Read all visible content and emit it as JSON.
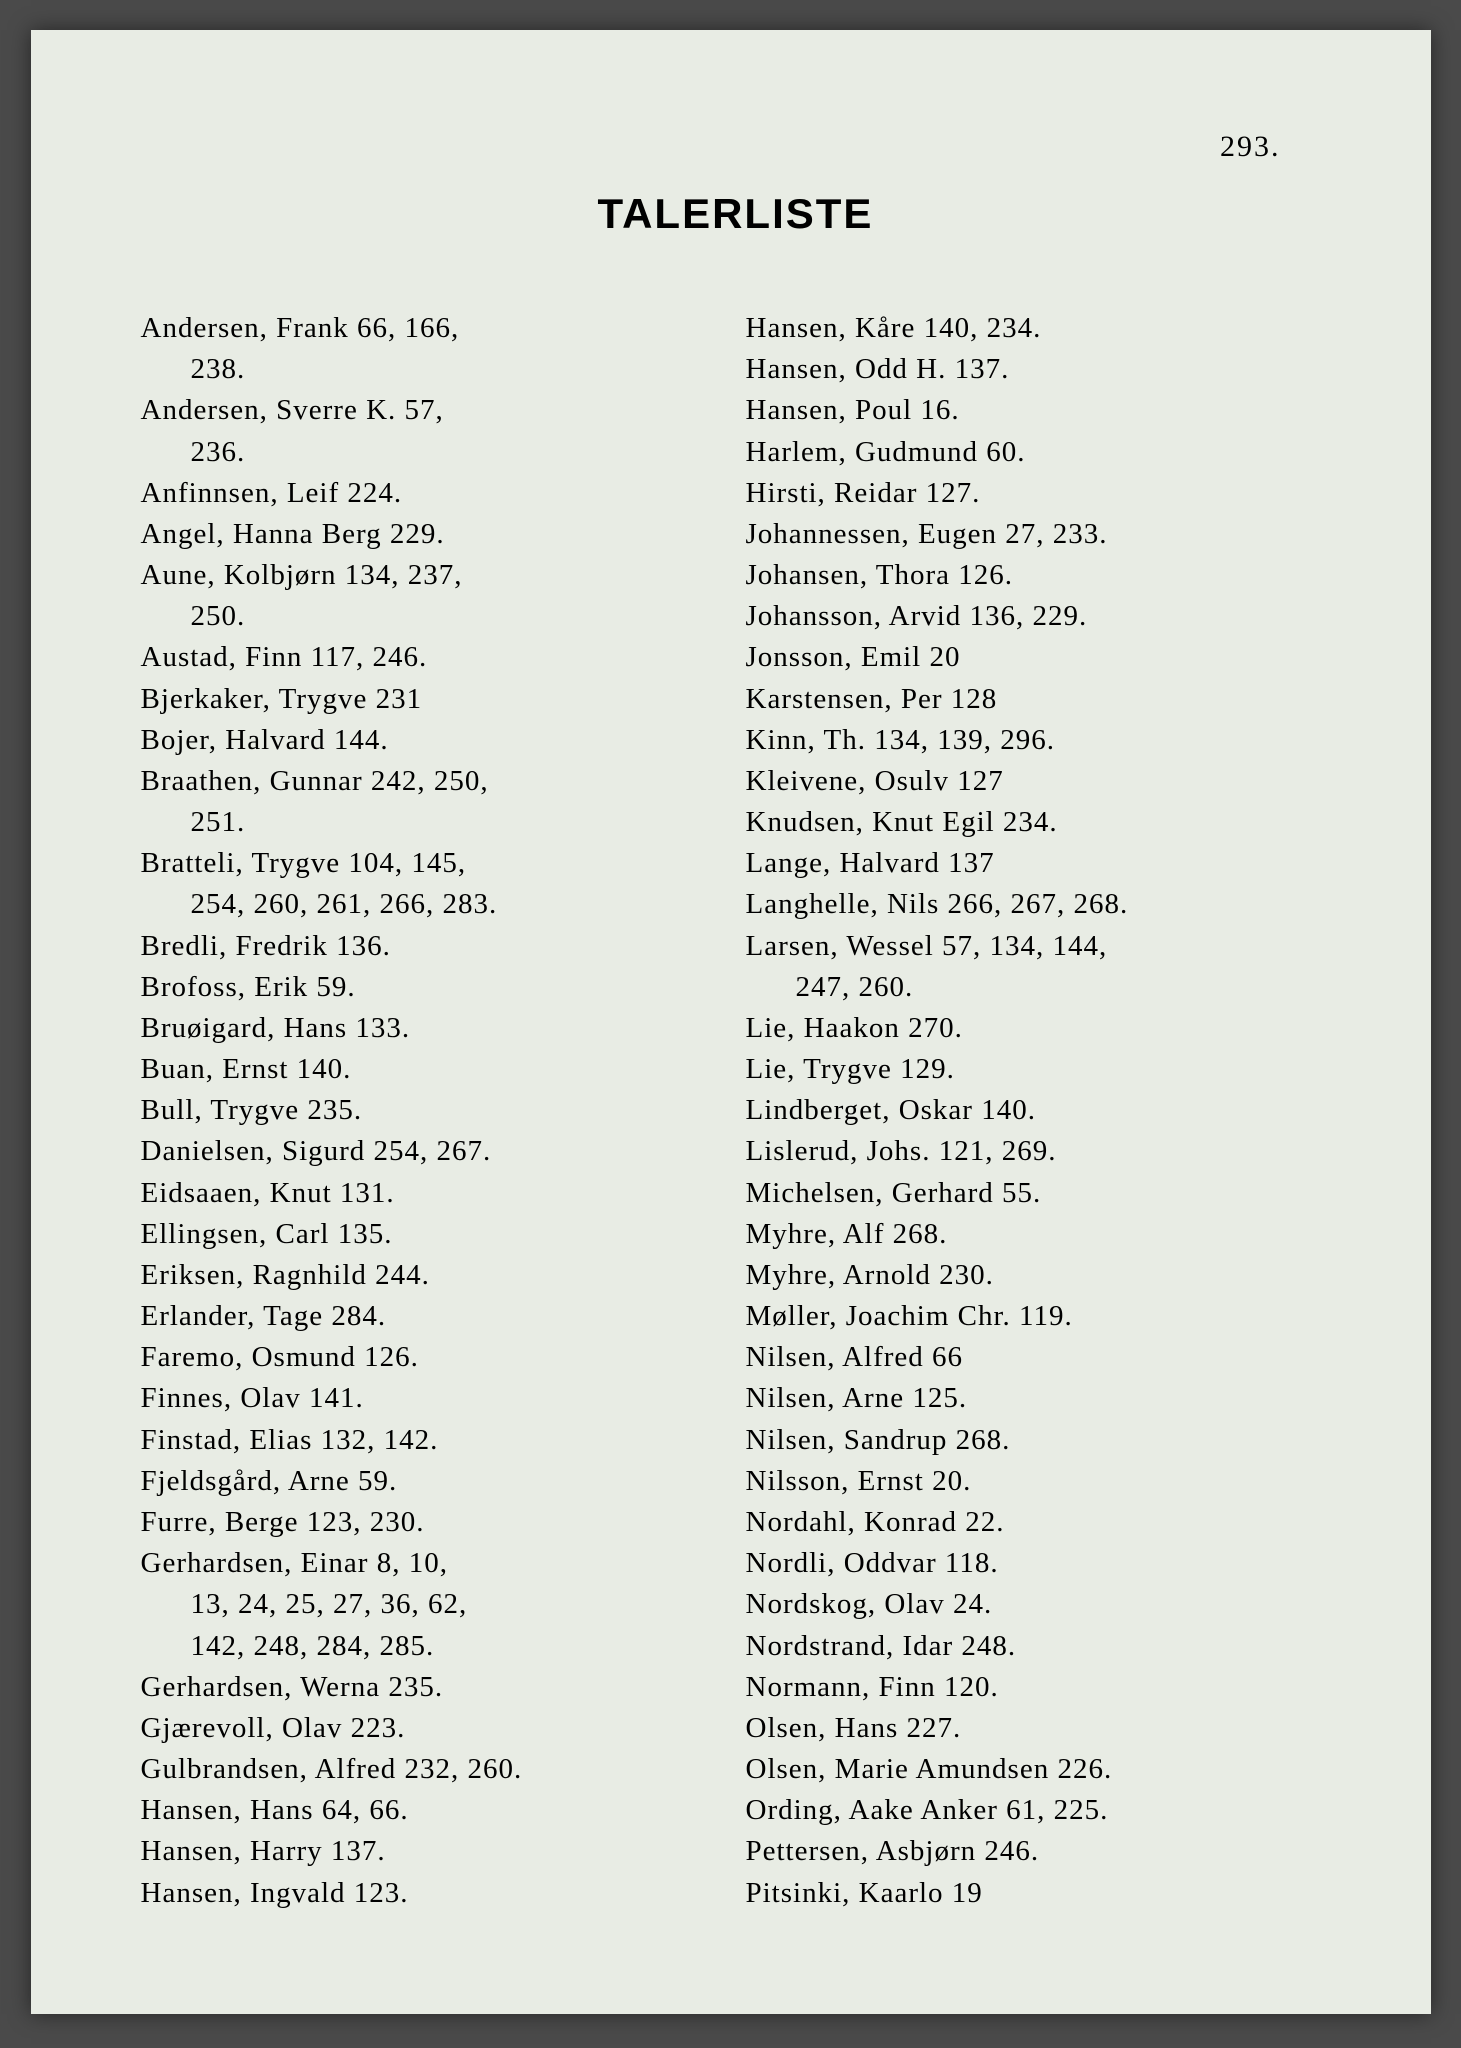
{
  "pageNumber": "293.",
  "title": "TALERLISTE",
  "leftColumn": [
    {
      "text": "Andersen, Frank 66, 166,",
      "cont": "238."
    },
    {
      "text": "Andersen, Sverre K. 57,",
      "cont": "236."
    },
    {
      "text": "Anfinnsen, Leif 224."
    },
    {
      "text": "Angel, Hanna Berg 229."
    },
    {
      "text": "Aune, Kolbjørn 134, 237,",
      "cont": "250."
    },
    {
      "text": "Austad, Finn 117, 246."
    },
    {
      "text": "Bjerkaker, Trygve 231"
    },
    {
      "text": "Bojer, Halvard 144."
    },
    {
      "text": "Braathen, Gunnar 242, 250,",
      "cont": "251."
    },
    {
      "text": "Bratteli, Trygve 104, 145,",
      "cont": "254, 260, 261, 266, 283."
    },
    {
      "text": "Bredli, Fredrik 136."
    },
    {
      "text": "Brofoss, Erik 59."
    },
    {
      "text": "Bruøigard, Hans 133."
    },
    {
      "text": "Buan, Ernst 140."
    },
    {
      "text": "Bull, Trygve 235."
    },
    {
      "text": "Danielsen, Sigurd 254, 267."
    },
    {
      "text": "Eidsaaen, Knut 131."
    },
    {
      "text": "Ellingsen, Carl 135."
    },
    {
      "text": "Eriksen, Ragnhild 244."
    },
    {
      "text": "Erlander, Tage 284."
    },
    {
      "text": "Faremo, Osmund 126."
    },
    {
      "text": "Finnes, Olav 141."
    },
    {
      "text": "Finstad, Elias 132, 142."
    },
    {
      "text": "Fjeldsgård, Arne 59."
    },
    {
      "text": "Furre, Berge 123, 230."
    },
    {
      "text": "Gerhardsen, Einar 8, 10,",
      "cont": "13, 24, 25, 27, 36, 62,",
      "cont2": "142, 248, 284, 285."
    },
    {
      "text": "Gerhardsen, Werna 235."
    },
    {
      "text": "Gjærevoll, Olav 223."
    },
    {
      "text": "Gulbrandsen, Alfred 232, 260."
    },
    {
      "text": "Hansen, Hans 64, 66."
    },
    {
      "text": "Hansen, Harry 137."
    },
    {
      "text": "Hansen, Ingvald 123."
    }
  ],
  "rightColumn": [
    {
      "text": "Hansen, Kåre 140, 234."
    },
    {
      "text": "Hansen, Odd H. 137."
    },
    {
      "text": "Hansen, Poul 16."
    },
    {
      "text": "Harlem, Gudmund 60."
    },
    {
      "text": "Hirsti, Reidar 127."
    },
    {
      "text": "Johannessen, Eugen 27, 233."
    },
    {
      "text": "Johansen, Thora 126."
    },
    {
      "text": "Johansson, Arvid 136, 229."
    },
    {
      "text": "Jonsson, Emil  20"
    },
    {
      "text": "Karstensen, Per 128"
    },
    {
      "text": "Kinn, Th. 134, 139, 296."
    },
    {
      "text": "Kleivene, Osulv 127"
    },
    {
      "text": "Knudsen, Knut Egil 234."
    },
    {
      "text": "Lange, Halvard 137"
    },
    {
      "text": "Langhelle, Nils 266, 267, 268."
    },
    {
      "text": "Larsen, Wessel 57, 134, 144,",
      "cont": "247, 260."
    },
    {
      "text": "Lie, Haakon 270."
    },
    {
      "text": "Lie, Trygve 129."
    },
    {
      "text": "Lindberget, Oskar 140."
    },
    {
      "text": "Lislerud, Johs. 121, 269."
    },
    {
      "text": "Michelsen, Gerhard 55."
    },
    {
      "text": "Myhre, Alf 268."
    },
    {
      "text": "Myhre, Arnold 230."
    },
    {
      "text": "Møller, Joachim Chr. 119."
    },
    {
      "text": "Nilsen, Alfred 66"
    },
    {
      "text": "Nilsen, Arne 125."
    },
    {
      "text": "Nilsen, Sandrup 268."
    },
    {
      "text": "Nilsson, Ernst 20."
    },
    {
      "text": "Nordahl, Konrad 22."
    },
    {
      "text": "Nordli, Oddvar 118."
    },
    {
      "text": "Nordskog, Olav 24."
    },
    {
      "text": "Nordstrand, Idar 248."
    },
    {
      "text": "Normann, Finn 120."
    },
    {
      "text": "Olsen, Hans 227."
    },
    {
      "text": "Olsen, Marie Amundsen 226."
    },
    {
      "text": "Ording, Aake Anker 61, 225."
    },
    {
      "text": "Pettersen, Asbjørn 246."
    },
    {
      "text": "Pitsinki, Kaarlo  19"
    }
  ]
}
